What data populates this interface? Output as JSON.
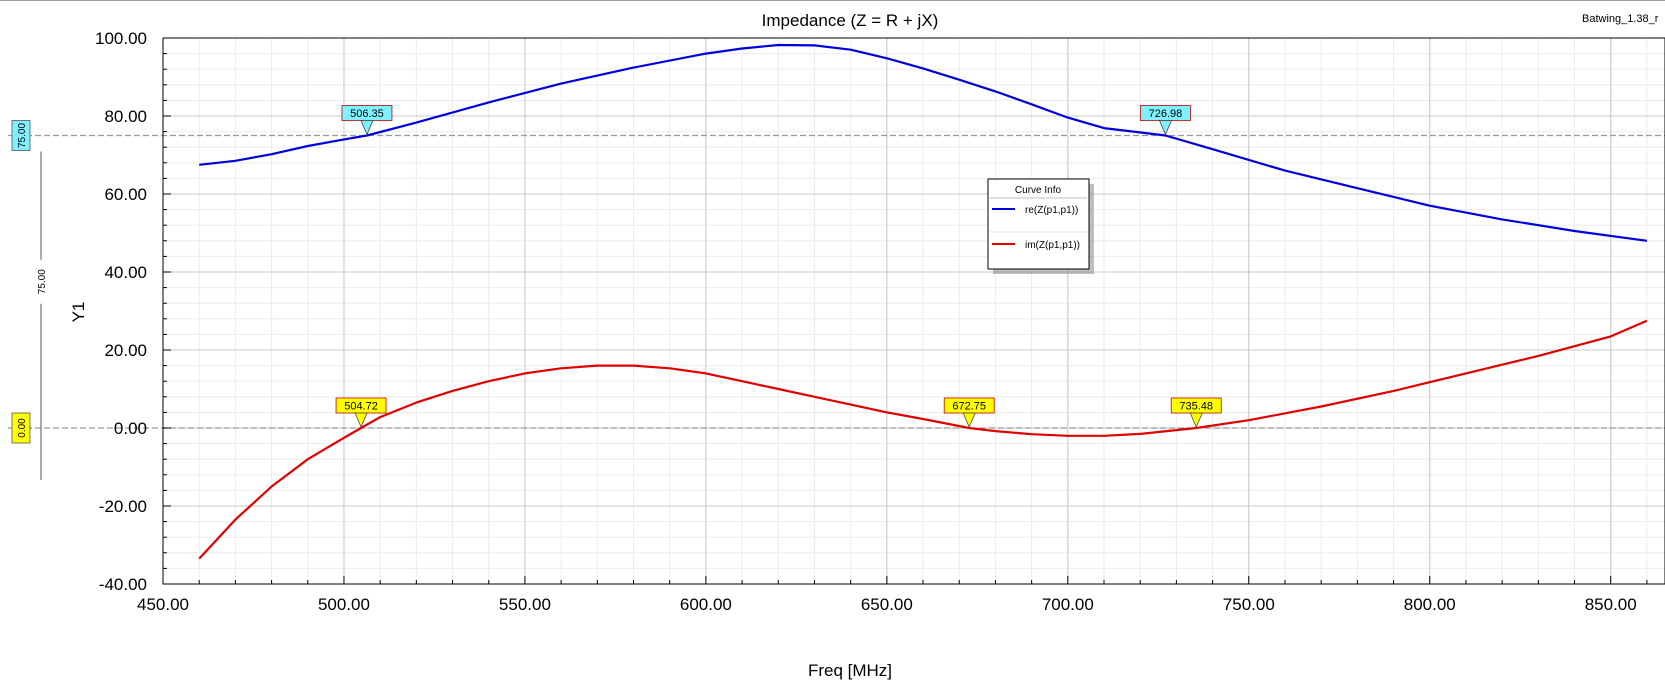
{
  "window": {
    "project_label": "Batwing_1.38_r"
  },
  "chart_data": {
    "type": "line",
    "title": "Impedance (Z = R + jX)",
    "xlabel": "Freq [MHz]",
    "ylabel": "Y1",
    "xlim": [
      450,
      865
    ],
    "ylim": [
      -40,
      100
    ],
    "xticks": [
      "450.00",
      "500.00",
      "550.00",
      "600.00",
      "650.00",
      "700.00",
      "750.00",
      "800.00",
      "850.00"
    ],
    "yticks": [
      "-40.00",
      "-20.00",
      "0.00",
      "20.00",
      "40.00",
      "60.00",
      "80.00",
      "100.00"
    ],
    "grid": true,
    "legend": {
      "title": "Curve Info",
      "placement": "center-right"
    },
    "series": [
      {
        "name": "re(Z(p1,p1))",
        "color": "#0000dd",
        "points": [
          [
            460,
            67.5
          ],
          [
            470,
            68.5
          ],
          [
            480,
            70.2
          ],
          [
            490,
            72.3
          ],
          [
            500,
            74.0
          ],
          [
            506.35,
            75.0
          ],
          [
            520,
            78.3
          ],
          [
            540,
            83.5
          ],
          [
            560,
            88.3
          ],
          [
            580,
            92.4
          ],
          [
            600,
            96.0
          ],
          [
            610,
            97.3
          ],
          [
            620,
            98.2
          ],
          [
            630,
            98.1
          ],
          [
            640,
            97.0
          ],
          [
            650,
            94.8
          ],
          [
            660,
            92.2
          ],
          [
            670,
            89.3
          ],
          [
            680,
            86.3
          ],
          [
            690,
            83.0
          ],
          [
            700,
            79.6
          ],
          [
            710,
            76.9
          ],
          [
            726.98,
            75.0
          ],
          [
            740,
            71.5
          ],
          [
            760,
            66.0
          ],
          [
            780,
            61.5
          ],
          [
            800,
            57.0
          ],
          [
            820,
            53.5
          ],
          [
            840,
            50.5
          ],
          [
            860,
            48.0
          ]
        ]
      },
      {
        "name": "im(Z(p1,p1))",
        "color": "#e00000",
        "points": [
          [
            460,
            -33.5
          ],
          [
            470,
            -23.5
          ],
          [
            480,
            -15.0
          ],
          [
            490,
            -8.0
          ],
          [
            500,
            -2.5
          ],
          [
            504.72,
            0.0
          ],
          [
            510,
            2.8
          ],
          [
            520,
            6.5
          ],
          [
            530,
            9.5
          ],
          [
            540,
            12.0
          ],
          [
            550,
            14.0
          ],
          [
            560,
            15.3
          ],
          [
            570,
            16.0
          ],
          [
            580,
            16.0
          ],
          [
            590,
            15.3
          ],
          [
            600,
            14.0
          ],
          [
            610,
            12.0
          ],
          [
            620,
            10.0
          ],
          [
            630,
            8.0
          ],
          [
            640,
            6.0
          ],
          [
            650,
            4.0
          ],
          [
            660,
            2.3
          ],
          [
            672.75,
            0.0
          ],
          [
            680,
            -0.8
          ],
          [
            690,
            -1.6
          ],
          [
            700,
            -2.0
          ],
          [
            710,
            -2.0
          ],
          [
            720,
            -1.5
          ],
          [
            735.48,
            0.0
          ],
          [
            750,
            2.0
          ],
          [
            770,
            5.5
          ],
          [
            790,
            9.5
          ],
          [
            810,
            14.0
          ],
          [
            830,
            18.5
          ],
          [
            850,
            23.5
          ],
          [
            860,
            27.5
          ]
        ]
      }
    ],
    "reference_lines": [
      {
        "y": 75,
        "label": "75.00",
        "color": "#7ff0ff"
      },
      {
        "y": 0,
        "label": "0.00",
        "color": "#ffff00"
      }
    ],
    "delta_label": "75.00",
    "markers": [
      {
        "x": 506.35,
        "y": 75.0,
        "label": "506.35",
        "color": "#7ff0ff"
      },
      {
        "x": 726.98,
        "y": 75.0,
        "label": "726.98",
        "color": "#7ff0ff"
      },
      {
        "x": 504.72,
        "y": 0.0,
        "label": "504.72",
        "color": "#ffff00"
      },
      {
        "x": 672.75,
        "y": 0.0,
        "label": "672.75",
        "color": "#ffff00"
      },
      {
        "x": 735.48,
        "y": 0.0,
        "label": "735.48",
        "color": "#ffff00"
      }
    ]
  }
}
